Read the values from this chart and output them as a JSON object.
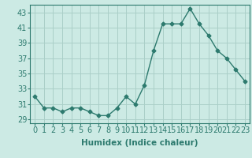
{
  "x": [
    0,
    1,
    2,
    3,
    4,
    5,
    6,
    7,
    8,
    9,
    10,
    11,
    12,
    13,
    14,
    15,
    16,
    17,
    18,
    19,
    20,
    21,
    22,
    23
  ],
  "y": [
    32.0,
    30.5,
    30.5,
    30.0,
    30.5,
    30.5,
    30.0,
    29.5,
    29.5,
    30.5,
    32.0,
    31.0,
    33.5,
    38.0,
    41.5,
    41.5,
    41.5,
    43.5,
    41.5,
    40.0,
    38.0,
    37.0,
    35.5,
    34.0
  ],
  "line_color": "#2d7a6e",
  "marker": "D",
  "marker_size": 2.5,
  "bg_color": "#cceae4",
  "grid_color": "#aacfc8",
  "xlabel": "Humidex (Indice chaleur)",
  "xlim": [
    -0.5,
    23.5
  ],
  "ylim": [
    28.5,
    44
  ],
  "yticks": [
    29,
    31,
    33,
    35,
    37,
    39,
    41,
    43
  ],
  "xlabel_fontsize": 7.5,
  "tick_fontsize": 7,
  "line_width": 1.0
}
